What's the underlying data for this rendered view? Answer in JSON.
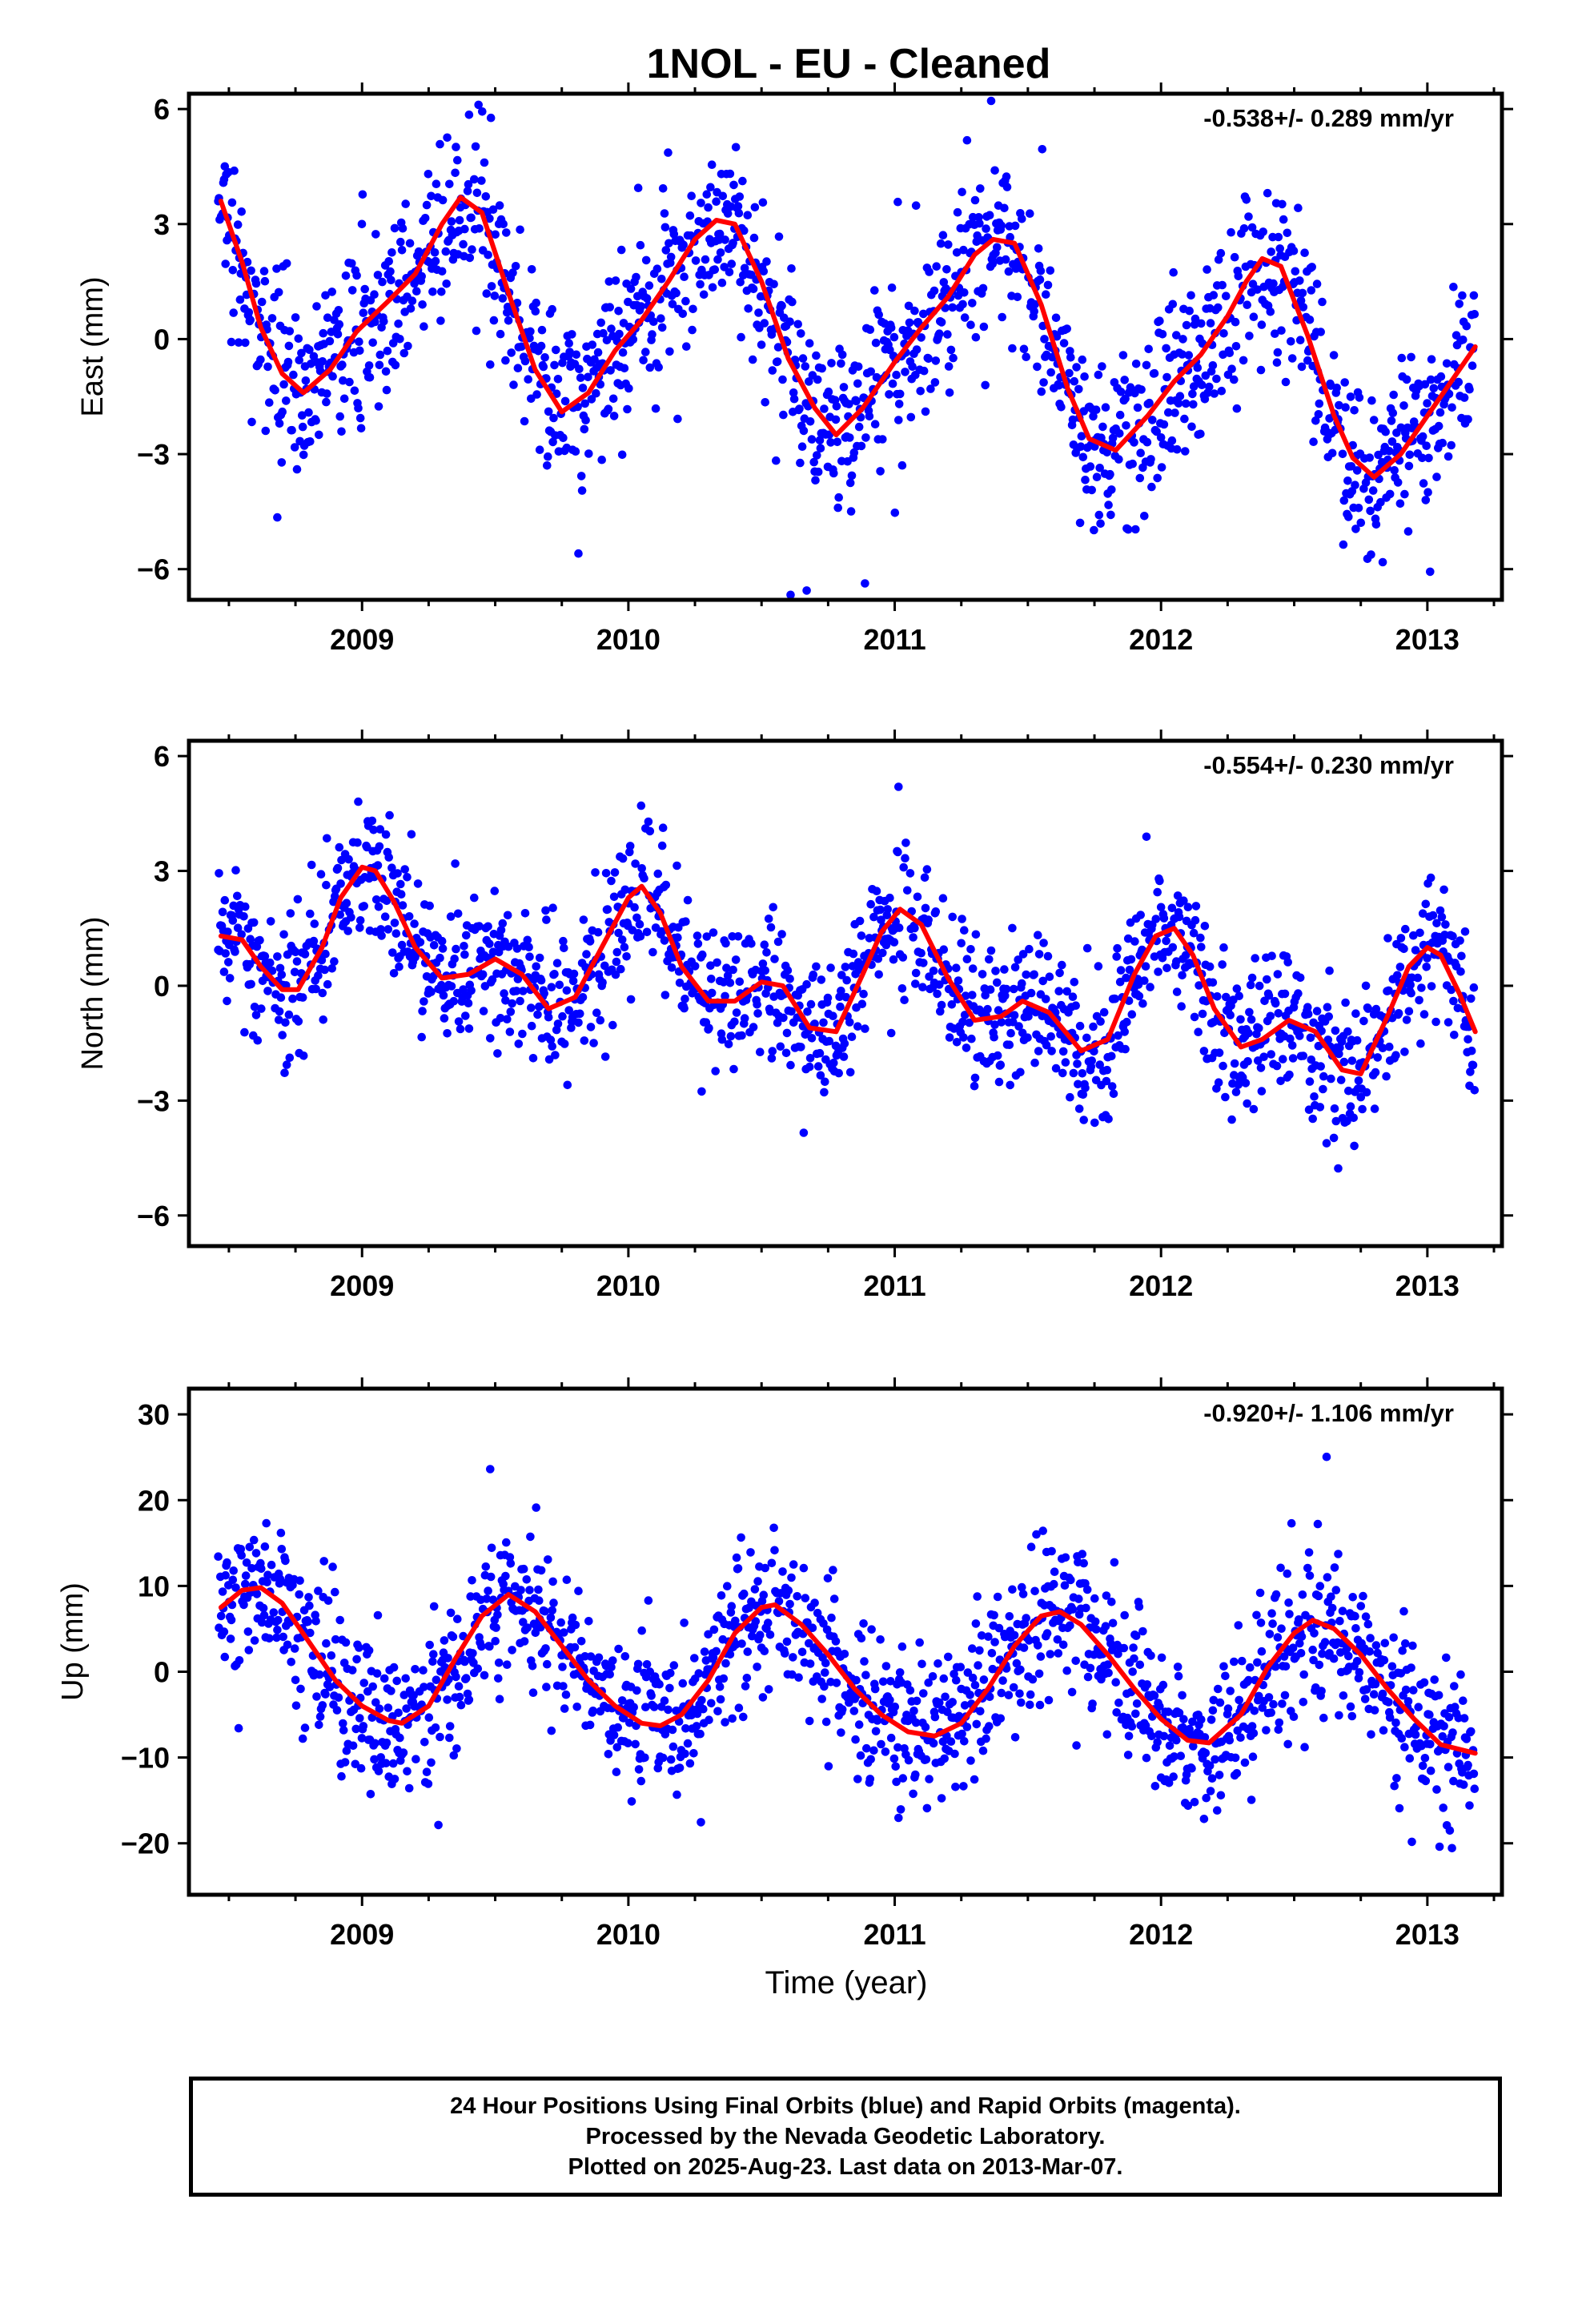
{
  "title": "1NOL  - EU - Cleaned",
  "xlabel": "Time (year)",
  "footer": [
    "24 Hour Positions Using Final Orbits (blue) and Rapid Orbits (magenta).",
    "Processed by the Nevada Geodetic Laboratory.",
    "Plotted on 2025-Aug-23. Last data on 2013-Mar-07."
  ],
  "colors": {
    "points": "#0000ff",
    "fit": "#ff0000",
    "frame": "#000000",
    "background": "#ffffff"
  },
  "chart_data": [
    {
      "type": "scatter",
      "ylabel": "East (mm)",
      "rate_label": "-0.538+/- 0.289 mm/yr",
      "xlim": [
        2008.35,
        2013.28
      ],
      "ylim": [
        -6.8,
        6.4
      ],
      "x_ticks": [
        2009,
        2010,
        2011,
        2012,
        2013
      ],
      "y_ticks": [
        -6,
        -3,
        0,
        3,
        6
      ],
      "y_tick_labels": [
        "−6",
        "−3",
        "0",
        "3",
        "6"
      ],
      "fit_line": {
        "x": [
          2008.47,
          2008.55,
          2008.62,
          2008.7,
          2008.78,
          2008.88,
          2008.98,
          2009.1,
          2009.2,
          2009.3,
          2009.37,
          2009.45,
          2009.55,
          2009.65,
          2009.75,
          2009.85,
          2009.95,
          2010.05,
          2010.15,
          2010.25,
          2010.33,
          2010.4,
          2010.5,
          2010.6,
          2010.7,
          2010.78,
          2010.88,
          2011.0,
          2011.1,
          2011.2,
          2011.3,
          2011.37,
          2011.45,
          2011.55,
          2011.65,
          2011.73,
          2011.83,
          2011.95,
          2012.05,
          2012.15,
          2012.25,
          2012.32,
          2012.38,
          2012.45,
          2012.55,
          2012.65,
          2012.72,
          2012.8,
          2012.9,
          2013.0,
          2013.1,
          2013.18
        ],
        "y": [
          3.6,
          2.0,
          0.3,
          -0.9,
          -1.4,
          -0.8,
          0.2,
          1.0,
          1.7,
          3.0,
          3.7,
          3.3,
          1.2,
          -0.8,
          -1.9,
          -1.4,
          -0.3,
          0.5,
          1.5,
          2.6,
          3.1,
          3.0,
          1.5,
          -0.5,
          -1.8,
          -2.5,
          -1.8,
          -0.6,
          0.3,
          1.1,
          2.2,
          2.6,
          2.5,
          0.9,
          -1.3,
          -2.6,
          -2.9,
          -2.0,
          -1.1,
          -0.4,
          0.6,
          1.5,
          2.1,
          1.9,
          0.1,
          -2.0,
          -3.1,
          -3.6,
          -3.0,
          -2.0,
          -1.0,
          -0.2
        ]
      }
    },
    {
      "type": "scatter",
      "ylabel": "North (mm)",
      "rate_label": "-0.554+/- 0.230 mm/yr",
      "xlim": [
        2008.35,
        2013.28
      ],
      "ylim": [
        -6.8,
        6.4
      ],
      "x_ticks": [
        2009,
        2010,
        2011,
        2012,
        2013
      ],
      "y_ticks": [
        -6,
        -3,
        0,
        3,
        6
      ],
      "y_tick_labels": [
        "−6",
        "−3",
        "0",
        "3",
        "6"
      ],
      "fit_line": {
        "x": [
          2008.47,
          2008.55,
          2008.62,
          2008.7,
          2008.76,
          2008.85,
          2008.92,
          2009.0,
          2009.05,
          2009.12,
          2009.2,
          2009.3,
          2009.4,
          2009.5,
          2009.6,
          2009.7,
          2009.8,
          2009.9,
          2010.0,
          2010.05,
          2010.12,
          2010.2,
          2010.3,
          2010.4,
          2010.5,
          2010.58,
          2010.68,
          2010.78,
          2010.88,
          2010.95,
          2011.02,
          2011.1,
          2011.2,
          2011.3,
          2011.4,
          2011.48,
          2011.58,
          2011.7,
          2011.8,
          2011.9,
          2011.98,
          2012.05,
          2012.12,
          2012.2,
          2012.3,
          2012.38,
          2012.48,
          2012.58,
          2012.68,
          2012.75,
          2012.85,
          2012.93,
          2013.0,
          2013.05,
          2013.12,
          2013.18
        ],
        "y": [
          1.3,
          1.2,
          0.5,
          -0.1,
          -0.1,
          1.0,
          2.3,
          3.1,
          3.0,
          2.2,
          1.0,
          0.2,
          0.3,
          0.7,
          0.3,
          -0.6,
          -0.3,
          1.0,
          2.3,
          2.6,
          1.9,
          0.5,
          -0.4,
          -0.4,
          0.1,
          0.0,
          -1.1,
          -1.2,
          0.3,
          1.4,
          2.0,
          1.6,
          0.2,
          -0.9,
          -0.8,
          -0.4,
          -0.7,
          -1.7,
          -1.4,
          0.3,
          1.3,
          1.5,
          0.8,
          -0.6,
          -1.6,
          -1.4,
          -0.9,
          -1.2,
          -2.2,
          -2.3,
          -0.8,
          0.5,
          1.0,
          0.8,
          -0.2,
          -1.2
        ]
      }
    },
    {
      "type": "scatter",
      "ylabel": "Up (mm)",
      "rate_label": "-0.920+/- 1.106 mm/yr",
      "xlim": [
        2008.35,
        2013.28
      ],
      "ylim": [
        -26,
        33
      ],
      "x_ticks": [
        2009,
        2010,
        2011,
        2012,
        2013
      ],
      "y_ticks": [
        -20,
        -10,
        0,
        10,
        20,
        30
      ],
      "y_tick_labels": [
        "−20",
        "−10",
        "0",
        "10",
        "20",
        "30"
      ],
      "fit_line": {
        "x": [
          2008.47,
          2008.55,
          2008.62,
          2008.7,
          2008.8,
          2008.9,
          2009.0,
          2009.1,
          2009.15,
          2009.25,
          2009.35,
          2009.45,
          2009.55,
          2009.65,
          2009.75,
          2009.85,
          2009.95,
          2010.05,
          2010.12,
          2010.2,
          2010.3,
          2010.4,
          2010.5,
          2010.55,
          2010.65,
          2010.75,
          2010.85,
          2010.95,
          2011.05,
          2011.15,
          2011.25,
          2011.35,
          2011.45,
          2011.55,
          2011.62,
          2011.7,
          2011.8,
          2011.9,
          2012.0,
          2012.1,
          2012.18,
          2012.3,
          2012.4,
          2012.5,
          2012.57,
          2012.65,
          2012.75,
          2012.85,
          2012.95,
          2013.05,
          2013.18
        ],
        "y": [
          7.5,
          9.5,
          9.8,
          8.0,
          3.5,
          -1.0,
          -4.0,
          -5.7,
          -6.0,
          -4.0,
          1.5,
          6.5,
          9.0,
          7.0,
          3.0,
          -1.0,
          -4.0,
          -6.0,
          -6.3,
          -5.0,
          -1.0,
          4.5,
          7.5,
          7.8,
          5.5,
          2.0,
          -2.0,
          -5.0,
          -7.0,
          -7.5,
          -6.0,
          -2.0,
          3.0,
          6.5,
          7.0,
          5.5,
          2.0,
          -2.0,
          -5.5,
          -8.0,
          -8.3,
          -5.0,
          0.5,
          4.5,
          6.0,
          5.0,
          2.0,
          -2.0,
          -5.5,
          -8.5,
          -9.5
        ]
      }
    }
  ]
}
